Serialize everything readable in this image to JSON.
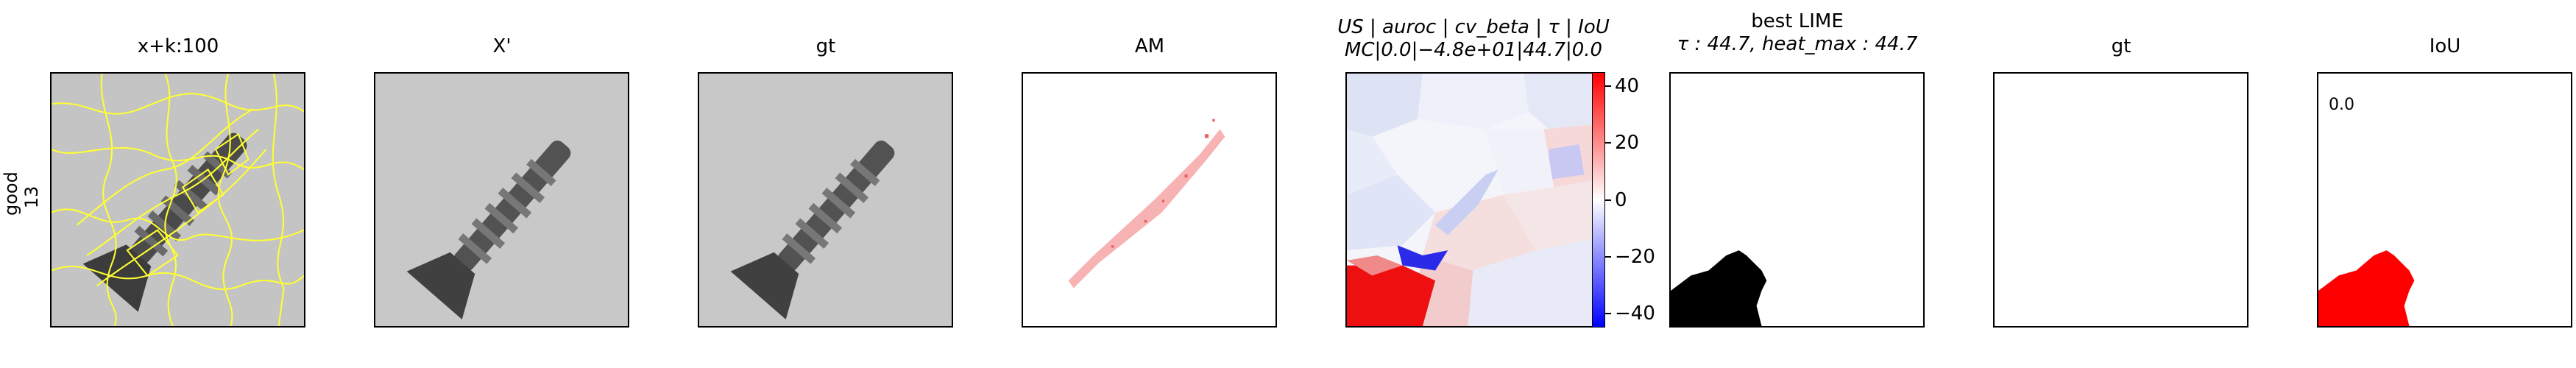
{
  "row_label": [
    "good",
    "13"
  ],
  "panels": [
    {
      "name": "superpixels-panel",
      "title": "x+k:100"
    },
    {
      "name": "reconstruction-panel",
      "title": "X'"
    },
    {
      "name": "gt-image-panel",
      "title": "gt"
    },
    {
      "name": "anomaly-map-panel",
      "title": "AM"
    },
    {
      "name": "us-heatmap-panel",
      "title": "US | auroc | cv_beta | τ | IoU",
      "subtitle": "MC|0.0|−4.8e+01|44.7|0.0"
    },
    {
      "name": "best-lime-panel",
      "title": "best LIME",
      "subtitle": "τ : 44.7, heat_max : 44.7"
    },
    {
      "name": "gt-mask-panel",
      "title": "gt"
    },
    {
      "name": "iou-panel",
      "title": "IoU",
      "annotation": "0.0"
    }
  ],
  "chart_data": {
    "type": "heatmap",
    "title": "US | auroc | cv_beta | τ | IoU",
    "subtitle": "MC|0.0|−4.8e+01|44.7|0.0",
    "colorbar": {
      "range": [
        -45,
        45
      ],
      "ticks": [
        40,
        20,
        0,
        -20,
        -40
      ],
      "tick_labels": [
        "40",
        "20",
        "0",
        "−20",
        "−40"
      ],
      "cmap": "bwr"
    },
    "best_lime": {
      "tau": 44.7,
      "heat_max": 44.7
    },
    "iou": 0.0
  },
  "colors": {
    "superpixel_edge": "#ffff33",
    "mask_black": "#000000",
    "mask_red": "#ff0000"
  }
}
